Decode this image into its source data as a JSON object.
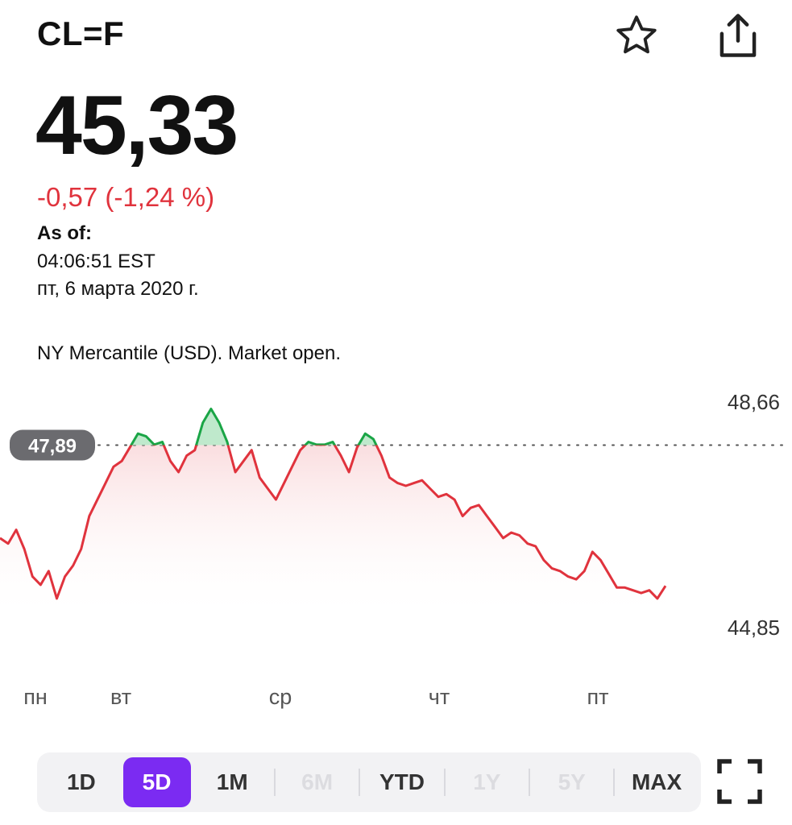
{
  "header": {
    "ticker": "CL=F",
    "favorite_icon": "star-icon",
    "share_icon": "share-icon"
  },
  "quote": {
    "price": "45,33",
    "change": "-0,57 (-1,24 %)",
    "as_of_label": "As of:",
    "as_of_time": "04:06:51 EST",
    "as_of_date": "пт, 6 марта 2020 г.",
    "market_status": "NY Mercantile (USD). Market open."
  },
  "colors": {
    "down": "#e0333d",
    "up": "#1aa546",
    "accent": "#7b2bf2"
  },
  "chart_data": {
    "type": "line",
    "previous_close": 47.89,
    "previous_close_label": "47,89",
    "y_high_label": "48,66",
    "y_low_label": "44,85",
    "ylim": [
      44.85,
      48.66
    ],
    "x_labels": [
      "пн",
      "вт",
      "ср",
      "чт",
      "пт"
    ],
    "series": [
      {
        "values": [
          46.2,
          46.1,
          46.35,
          46.0,
          45.5,
          45.35,
          45.6,
          45.1,
          45.5,
          45.7,
          46.0,
          46.6,
          46.9,
          47.2,
          47.5,
          47.6,
          47.85,
          48.1,
          48.05,
          47.9,
          47.95,
          47.6,
          47.4,
          47.7,
          47.8,
          48.3,
          48.55,
          48.3,
          47.95,
          47.4,
          47.6,
          47.8,
          47.3,
          47.1,
          46.9,
          47.2,
          47.5,
          47.8,
          47.95,
          47.9,
          47.9,
          47.95,
          47.7,
          47.4,
          47.85,
          48.1,
          48.0,
          47.7,
          47.3,
          47.2,
          47.15,
          47.2,
          47.25,
          47.1,
          46.95,
          47.0,
          46.9,
          46.6,
          46.75,
          46.8,
          46.6,
          46.4,
          46.2,
          46.3,
          46.25,
          46.1,
          46.05,
          45.8,
          45.65,
          45.6,
          45.5,
          45.45,
          45.6,
          45.95,
          45.8,
          45.55,
          45.3,
          45.3,
          45.25,
          45.2,
          45.25,
          45.1,
          45.33
        ]
      }
    ]
  },
  "ranges": [
    {
      "label": "1D",
      "state": "normal"
    },
    {
      "label": "5D",
      "state": "active"
    },
    {
      "label": "1M",
      "state": "normal"
    },
    {
      "label": "6M",
      "state": "disabled"
    },
    {
      "label": "YTD",
      "state": "normal"
    },
    {
      "label": "1Y",
      "state": "disabled"
    },
    {
      "label": "5Y",
      "state": "disabled"
    },
    {
      "label": "MAX",
      "state": "normal"
    }
  ],
  "fullscreen_icon": "fullscreen-icon"
}
